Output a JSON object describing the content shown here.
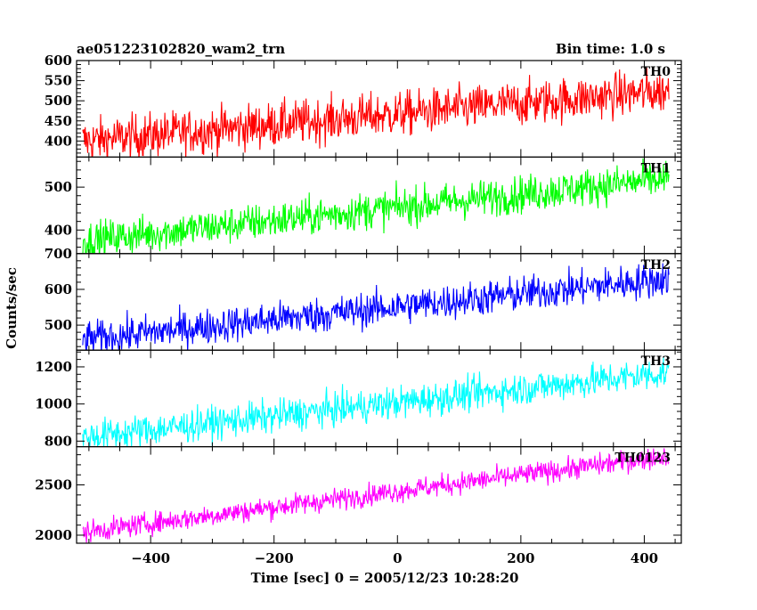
{
  "header": {
    "left": "ae051223102820_wam2_trn",
    "right": "Bin time: 1.0 s"
  },
  "chart_data": {
    "type": "line",
    "title": "ae051223102820_wam2_trn",
    "subtitle": "Bin time: 1.0 s",
    "xlabel": "Time [sec] 0 = 2005/12/23 10:28:20",
    "ylabel": "Counts/sec",
    "xlim": [
      -520,
      460
    ],
    "x_ticks": [
      -400,
      -200,
      0,
      200,
      400
    ],
    "x_tick_labels": [
      "−400",
      "−200",
      "0",
      "200",
      "400"
    ],
    "x_start": -510,
    "x_end": 440,
    "bin": 1.0,
    "grid": false,
    "legend": "none",
    "panels": [
      {
        "name": "TH0",
        "color": "#ff0000",
        "ylim": [
          360,
          600
        ],
        "y_ticks": [
          400,
          450,
          500,
          550,
          600
        ],
        "y_tick_labels": [
          "400",
          "450",
          "500",
          "550",
          "600"
        ],
        "trend_start": 400,
        "trend_end": 525,
        "noise": 28
      },
      {
        "name": "TH1",
        "color": "#00ff00",
        "ylim": [
          345,
          570
        ],
        "y_ticks": [
          400,
          500
        ],
        "y_tick_labels": [
          "400",
          "500"
        ],
        "trend_start": 375,
        "trend_end": 520,
        "noise": 22
      },
      {
        "name": "TH2",
        "color": "#0000ff",
        "ylim": [
          430,
          700
        ],
        "y_ticks": [
          500,
          600,
          700
        ],
        "y_tick_labels": [
          "500",
          "600",
          "700"
        ],
        "trend_start": 460,
        "trend_end": 630,
        "noise": 25
      },
      {
        "name": "TH3",
        "color": "#00ffff",
        "ylim": [
          770,
          1290
        ],
        "y_ticks": [
          800,
          1000,
          1200
        ],
        "y_tick_labels": [
          "800",
          "1000",
          "1200"
        ],
        "trend_start": 820,
        "trend_end": 1170,
        "noise": 45
      },
      {
        "name": "TH0123",
        "color": "#ff00ff",
        "ylim": [
          1920,
          2880
        ],
        "y_ticks": [
          2000,
          2500
        ],
        "y_tick_labels": [
          "2000",
          "2500"
        ],
        "trend_start": 2030,
        "trend_end": 2790,
        "noise": 55
      }
    ]
  }
}
